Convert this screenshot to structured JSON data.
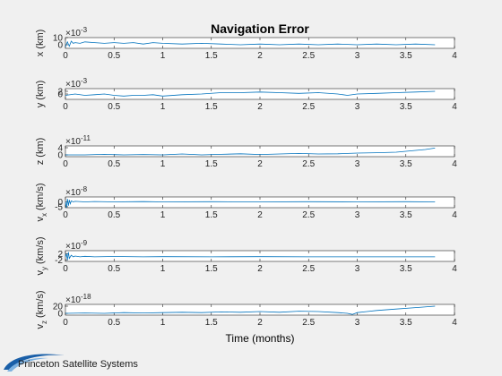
{
  "chart_data": {
    "type": "line",
    "title": "Navigation Error",
    "xlabel": "Time (months)",
    "xlim": [
      0,
      4
    ],
    "x_ticks": [
      "0",
      "0.5",
      "1",
      "1.5",
      "2",
      "2.5",
      "3",
      "3.5",
      "4"
    ],
    "series_color": "#0072BD",
    "grid": false,
    "panels": [
      {
        "ylabel": "x (km)",
        "ylabel_main": "x",
        "ylabel_sub": "",
        "ylabel_unit": " (km)",
        "exponent": "×10",
        "exponent_power": "-3",
        "ylim": [
          -5,
          10
        ],
        "y_ticks": [
          "10",
          "0"
        ],
        "y_tick_values": [
          10,
          0
        ],
        "series": [
          {
            "x": [
              0,
              0.02,
              0.04,
              0.06,
              0.08,
              0.1,
              0.15,
              0.2,
              0.3,
              0.4,
              0.5,
              0.6,
              0.7,
              0.8,
              0.9,
              1.0,
              1.2,
              1.4,
              1.6,
              1.8,
              2.0,
              2.2,
              2.4,
              2.6,
              2.8,
              3.0,
              3.2,
              3.4,
              3.6,
              3.8
            ],
            "values": [
              -3,
              4,
              -2,
              5,
              2,
              3,
              2,
              4,
              3,
              2,
              3,
              2,
              3,
              1,
              3,
              2,
              1,
              2,
              1,
              0,
              1,
              0,
              1,
              0,
              1,
              0,
              1,
              0,
              1,
              0
            ]
          }
        ]
      },
      {
        "ylabel": "y (km)",
        "ylabel_main": "y",
        "ylabel_sub": "",
        "ylabel_unit": " (km)",
        "exponent": "×10",
        "exponent_power": "-3",
        "ylim": [
          -4,
          4
        ],
        "y_ticks": [
          "2",
          "0"
        ],
        "y_tick_values": [
          2,
          0
        ],
        "series": [
          {
            "x": [
              0,
              0.1,
              0.2,
              0.3,
              0.4,
              0.5,
              0.6,
              0.7,
              0.8,
              0.9,
              1.0,
              1.2,
              1.4,
              1.6,
              1.8,
              2.0,
              2.2,
              2.4,
              2.6,
              2.8,
              2.9,
              3.0,
              3.2,
              3.4,
              3.6,
              3.8
            ],
            "values": [
              -1,
              0,
              -1,
              -0.5,
              0,
              -1,
              -1.5,
              -1,
              -1,
              -0.5,
              -1.5,
              -0.5,
              0,
              1,
              1,
              1.5,
              1,
              0.5,
              1,
              0,
              -1,
              0,
              0.5,
              1,
              1.5,
              2
            ]
          }
        ]
      },
      {
        "ylabel": "z (km)",
        "ylabel_main": "z",
        "ylabel_sub": "",
        "ylabel_unit": " (km)",
        "exponent": "×10",
        "exponent_power": "-11",
        "ylim": [
          -1,
          5
        ],
        "y_ticks": [
          "4",
          "0"
        ],
        "y_tick_values": [
          4,
          0
        ],
        "series": [
          {
            "x": [
              0,
              0.2,
              0.4,
              0.6,
              0.8,
              1.0,
              1.2,
              1.4,
              1.6,
              1.8,
              2.0,
              2.2,
              2.4,
              2.6,
              2.8,
              3.0,
              3.2,
              3.4,
              3.5,
              3.6,
              3.7,
              3.8
            ],
            "values": [
              0,
              0,
              0.3,
              0,
              0.2,
              0,
              0.5,
              0,
              0.3,
              0.6,
              0.2,
              0.5,
              0.8,
              0.5,
              0.6,
              1.0,
              1.2,
              1.5,
              2,
              2.5,
              3,
              3.8
            ]
          }
        ]
      },
      {
        "ylabel": "vx (km/s)",
        "ylabel_main": "v",
        "ylabel_sub": "x",
        "ylabel_unit": " (km/s)",
        "exponent": "×10",
        "exponent_power": "-8",
        "ylim": [
          -6,
          5
        ],
        "y_ticks": [
          "0",
          "-5"
        ],
        "y_tick_values": [
          0,
          -5
        ],
        "series": [
          {
            "x": [
              0,
              0.01,
              0.02,
              0.03,
              0.04,
              0.05,
              0.06,
              0.08,
              0.1,
              0.2,
              0.3,
              0.5,
              0.8,
              1.0,
              1.5,
              2.0,
              2.5,
              3.0,
              3.5,
              3.8
            ],
            "values": [
              0,
              -6,
              3,
              -4,
              2,
              -2,
              1,
              0,
              0.5,
              0,
              0.3,
              0,
              0.2,
              0,
              0.1,
              0,
              0.1,
              0,
              0.1,
              0
            ]
          }
        ]
      },
      {
        "ylabel": "vy (km/s)",
        "ylabel_main": "v",
        "ylabel_sub": "y",
        "ylabel_unit": " (km/s)",
        "exponent": "×10",
        "exponent_power": "-9",
        "ylim": [
          -3,
          4
        ],
        "y_ticks": [
          "2",
          "-2"
        ],
        "y_tick_values": [
          2,
          -2
        ],
        "series": [
          {
            "x": [
              0,
              0.01,
              0.02,
              0.03,
              0.04,
              0.06,
              0.08,
              0.1,
              0.15,
              0.2,
              0.3,
              0.5,
              0.8,
              1.0,
              1.5,
              2.0,
              2.5,
              3.0,
              3.5,
              3.8
            ],
            "values": [
              0,
              2,
              -2,
              3,
              -1,
              1,
              0,
              0.5,
              0,
              0.3,
              0,
              0.2,
              0,
              0.1,
              0,
              0.1,
              0,
              0,
              0,
              0
            ]
          }
        ]
      },
      {
        "ylabel": "vz (km/s)",
        "ylabel_main": "v",
        "ylabel_sub": "z",
        "ylabel_unit": " (km/s)",
        "exponent": "×10",
        "exponent_power": "-18",
        "ylim": [
          -5,
          25
        ],
        "y_ticks": [
          "20",
          "0"
        ],
        "y_tick_values": [
          20,
          0
        ],
        "series": [
          {
            "x": [
              0,
              0.2,
              0.4,
              0.6,
              0.8,
              1.0,
              1.2,
              1.4,
              1.6,
              1.8,
              2.0,
              2.2,
              2.4,
              2.6,
              2.8,
              2.9,
              2.95,
              3.0,
              3.1,
              3.2,
              3.4,
              3.6,
              3.8
            ],
            "values": [
              0,
              1,
              0,
              2,
              1,
              2,
              3,
              2,
              4,
              3,
              5,
              3,
              6,
              5,
              2,
              0,
              -3,
              2,
              5,
              8,
              12,
              16,
              20
            ]
          }
        ]
      }
    ]
  },
  "logo": {
    "company": "Princeton Satellite Systems"
  }
}
